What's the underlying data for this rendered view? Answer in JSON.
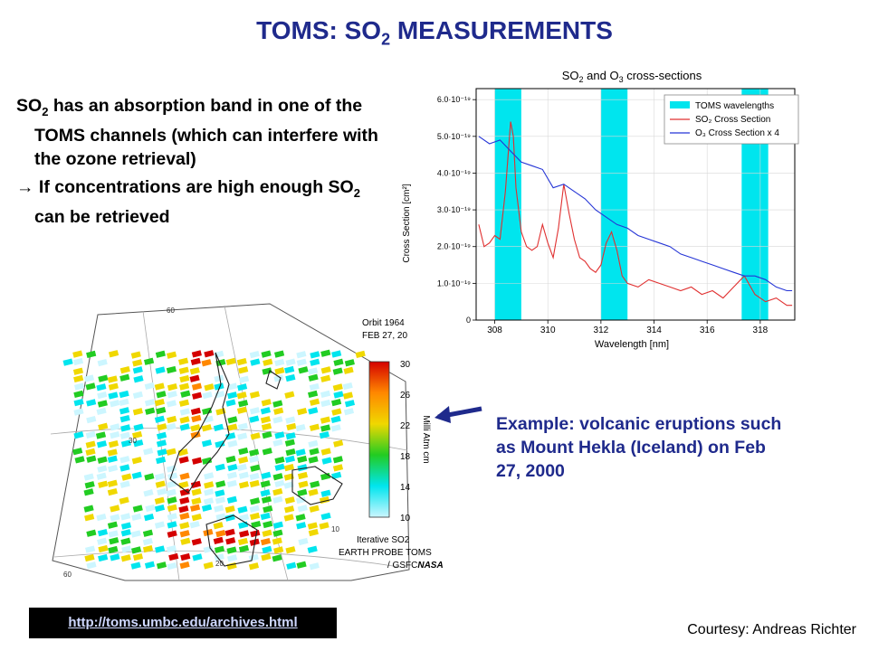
{
  "title": {
    "main": "TOMS: SO",
    "sub": "2",
    "tail": " MEASUREMENTS"
  },
  "bullets": {
    "b1_pre": "SO",
    "b1_sub": "2",
    "b1_post": " has an absorption band in one of the TOMS channels (which can interfere with the ozone retrieval)",
    "b2_pre": "→ If concentrations are high enough SO",
    "b2_sub": "2",
    "b2_post": " can be retrieved"
  },
  "caption": "Example: volcanic eruptions such as Mount Hekla (Iceland) on Feb 27, 2000",
  "link": "http://toms.umbc.edu/archives.html",
  "courtesy": "Courtesy: Andreas Richter",
  "chart_data": {
    "type": "line",
    "title_pre": "SO",
    "title_sub": "2",
    "title_mid": " and O",
    "title_sub2": "3",
    "title_post": " cross-sections",
    "xlabel": "Wavelength  [nm]",
    "ylabel": "Cross Section [cm²]",
    "xlim": [
      307.3,
      319.3
    ],
    "ylim": [
      0,
      6.3
    ],
    "xticks": [
      308,
      310,
      312,
      314,
      316,
      318
    ],
    "yticks": [
      {
        "v": 0,
        "label": "0"
      },
      {
        "v": 1,
        "label": "1.0·10⁻¹⁹"
      },
      {
        "v": 2,
        "label": "2.0·10⁻¹⁹"
      },
      {
        "v": 3,
        "label": "3.0·10⁻¹⁹"
      },
      {
        "v": 4,
        "label": "4.0·10⁻¹⁹"
      },
      {
        "v": 5,
        "label": "5.0·10⁻¹⁹"
      },
      {
        "v": 6,
        "label": "6.0·10⁻¹⁹"
      }
    ],
    "bands": [
      [
        308.0,
        309.0
      ],
      [
        312.0,
        313.0
      ],
      [
        317.3,
        318.3
      ]
    ],
    "legend": [
      "TOMS wavelengths",
      "SO₂ Cross Section",
      "O₃ Cross Section x 4"
    ],
    "colors": {
      "band": "#00e5ee",
      "so2": "#e03030",
      "o3": "#2535d6"
    },
    "series": [
      {
        "name": "SO₂ Cross Section",
        "x": [
          307.4,
          307.6,
          307.8,
          308.0,
          308.2,
          308.4,
          308.6,
          308.7,
          308.8,
          309.0,
          309.2,
          309.4,
          309.6,
          309.8,
          310.0,
          310.2,
          310.4,
          310.6,
          310.8,
          311.0,
          311.2,
          311.4,
          311.6,
          311.8,
          312.0,
          312.2,
          312.4,
          312.6,
          312.8,
          313.0,
          313.4,
          313.8,
          314.2,
          314.6,
          315.0,
          315.4,
          315.8,
          316.2,
          316.6,
          317.0,
          317.4,
          317.8,
          318.2,
          318.6,
          319.0,
          319.2
        ],
        "y": [
          2.6,
          2.0,
          2.1,
          2.3,
          2.2,
          3.5,
          5.4,
          5.0,
          3.6,
          2.4,
          2.0,
          1.9,
          2.0,
          2.6,
          2.1,
          1.7,
          2.5,
          3.7,
          2.9,
          2.2,
          1.7,
          1.6,
          1.4,
          1.3,
          1.5,
          2.1,
          2.4,
          1.9,
          1.2,
          1.0,
          0.9,
          1.1,
          1.0,
          0.9,
          0.8,
          0.9,
          0.7,
          0.8,
          0.6,
          0.9,
          1.2,
          0.7,
          0.5,
          0.6,
          0.4,
          0.4
        ]
      },
      {
        "name": "O₃ Cross Section x 4",
        "x": [
          307.4,
          307.8,
          308.2,
          308.6,
          309.0,
          309.4,
          309.8,
          310.2,
          310.6,
          311.0,
          311.4,
          311.8,
          312.2,
          312.6,
          313.0,
          313.4,
          313.8,
          314.2,
          314.6,
          315.0,
          315.4,
          315.8,
          316.2,
          316.6,
          317.0,
          317.4,
          317.8,
          318.2,
          318.6,
          319.0,
          319.2
        ],
        "y": [
          5.0,
          4.8,
          4.9,
          4.6,
          4.3,
          4.2,
          4.1,
          3.6,
          3.7,
          3.5,
          3.3,
          3.0,
          2.8,
          2.6,
          2.5,
          2.3,
          2.2,
          2.1,
          2.0,
          1.8,
          1.7,
          1.6,
          1.5,
          1.4,
          1.3,
          1.2,
          1.2,
          1.1,
          0.9,
          0.8,
          0.8
        ]
      }
    ]
  },
  "map": {
    "orbit_line1": "Orbit 1964",
    "orbit_line2": "FEB 27, 20",
    "colorbar_label": "Milli Atm cm",
    "colorbar_ticks": [
      "30",
      "26",
      "22",
      "18",
      "14",
      "10"
    ],
    "colorbar_colors": [
      "#d40000",
      "#ff8800",
      "#f0d800",
      "#22cc22",
      "#00e5ee",
      "#ccf6ff"
    ],
    "footer1": "Iterative SO2",
    "footer2": "EARTH PROBE TOMS",
    "footer3": "/ GSFC",
    "footer_logo": "NASA",
    "lat_labels": [
      "60",
      "30",
      "20",
      "60",
      "10"
    ]
  }
}
